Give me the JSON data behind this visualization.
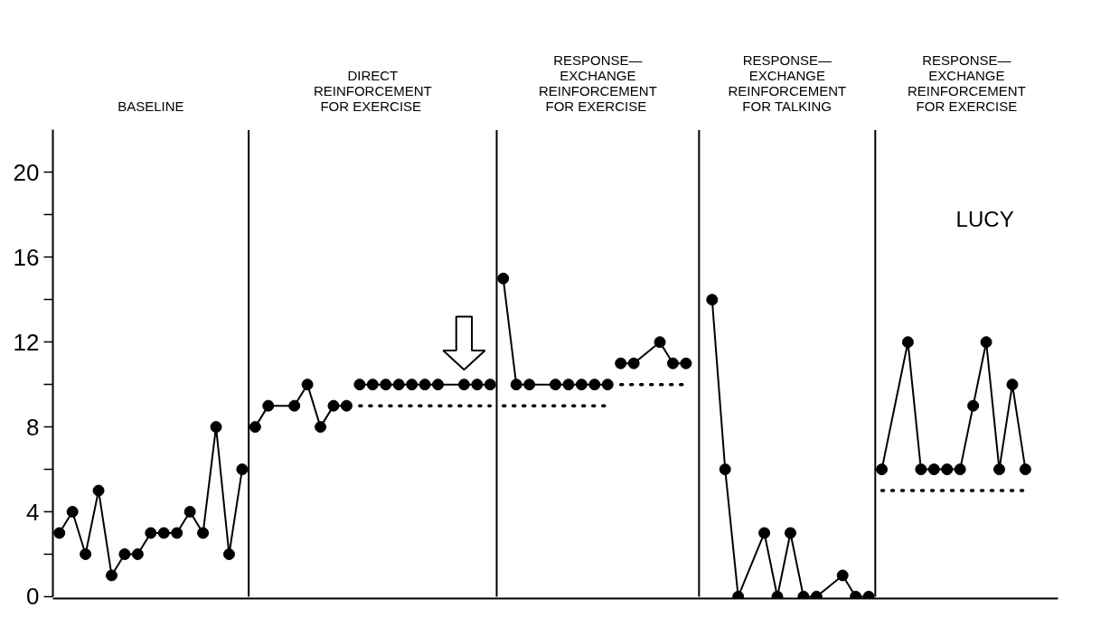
{
  "chart_data": {
    "type": "line",
    "annotations": [
      "BASELINE",
      "DIRECT\nREINFORCEMENT\nFOR  EXERCISE",
      "RESPONSE—\nEXCHANGE\nREINFORCEMENT\nFOR  EXERCISE",
      "RESPONSE—\nEXCHANGE\nREINFORCEMENT\nFOR TALKING",
      "RESPONSE—\nEXCHANGE\nREINFORCEMENT\nFOR EXERCISE",
      "LUCY"
    ],
    "categories": [
      null,
      null,
      null,
      null,
      null,
      null,
      null,
      null,
      null,
      null,
      null,
      null,
      null,
      null,
      null,
      null,
      null,
      null,
      null,
      null,
      null,
      null,
      null,
      null,
      null,
      null,
      null,
      null,
      null,
      null,
      null,
      null,
      null,
      null,
      null,
      null,
      null,
      null,
      null,
      null,
      null,
      null,
      null,
      null,
      null,
      null,
      null,
      null,
      null,
      null,
      null,
      null,
      null,
      null,
      null,
      null,
      null,
      null,
      null,
      null,
      null,
      null,
      null,
      null,
      null,
      null,
      null,
      null,
      null,
      null,
      null,
      null,
      null,
      null,
      null,
      null,
      null
    ],
    "ylim": [
      0,
      22
    ],
    "yticks": [
      0,
      {
        "value": 2,
        "label": null
      },
      4,
      {
        "value": 6,
        "label": null
      },
      8,
      {
        "value": 10,
        "label": null
      },
      12,
      {
        "value": 14,
        "label": null
      },
      16,
      {
        "value": 18,
        "label": null
      },
      20
    ],
    "tick_labels": "y",
    "marker": "circle",
    "line_style": "solid",
    "series": [
      {
        "color": "#000000",
        "values": [
          3,
          4,
          2,
          5,
          1,
          2,
          2,
          3,
          3,
          3,
          4,
          3,
          8,
          2,
          6,
          null,
          null,
          null,
          null,
          null,
          null,
          null,
          null,
          null,
          null,
          null,
          null,
          null,
          null,
          null,
          null,
          null,
          null,
          null,
          null,
          null,
          null,
          null,
          null,
          null,
          null,
          null,
          null,
          null,
          null,
          null,
          null,
          null,
          null,
          null,
          null,
          null,
          null,
          null,
          null,
          null,
          null,
          null,
          null,
          null,
          null,
          null,
          null,
          null,
          null,
          null,
          null,
          null,
          null,
          null,
          null,
          null,
          null,
          null,
          null,
          null,
          null
        ]
      },
      {
        "color": "#000000",
        "values": [
          null,
          null,
          null,
          null,
          null,
          null,
          null,
          null,
          null,
          null,
          null,
          null,
          null,
          null,
          null,
          8,
          9,
          null,
          9,
          10,
          8,
          9,
          9,
          null,
          null,
          null,
          null,
          null,
          null,
          null,
          null,
          null,
          null,
          null,
          null,
          null,
          null,
          null,
          null,
          null,
          null,
          null,
          null,
          null,
          null,
          null,
          null,
          null,
          null,
          null,
          null,
          null,
          null,
          null,
          null,
          null,
          null,
          null,
          null,
          null,
          null,
          null,
          null,
          null,
          null,
          null,
          null,
          null,
          null,
          null,
          null,
          null,
          null,
          null,
          null,
          null,
          null
        ]
      },
      {
        "color": "#000000",
        "values": [
          null,
          null,
          null,
          null,
          null,
          null,
          null,
          null,
          null,
          null,
          null,
          null,
          null,
          null,
          null,
          null,
          null,
          null,
          null,
          null,
          null,
          null,
          null,
          10,
          10,
          10,
          10,
          10,
          10,
          10,
          null,
          10,
          10,
          10,
          null,
          null,
          null,
          null,
          null,
          null,
          null,
          null,
          null,
          null,
          null,
          null,
          null,
          null,
          null,
          null,
          null,
          null,
          null,
          null,
          null,
          null,
          null,
          null,
          null,
          null,
          null,
          null,
          null,
          null,
          null,
          null,
          null,
          null,
          null,
          null,
          null,
          null,
          null,
          null,
          null,
          null,
          null
        ]
      },
      {
        "color": "#000000",
        "values": [
          null,
          null,
          null,
          null,
          null,
          null,
          null,
          null,
          null,
          null,
          null,
          null,
          null,
          null,
          null,
          null,
          null,
          null,
          null,
          null,
          null,
          null,
          null,
          null,
          null,
          null,
          null,
          null,
          null,
          null,
          null,
          null,
          null,
          null,
          15,
          10,
          10,
          null,
          10,
          10,
          10,
          10,
          10,
          null,
          null,
          null,
          null,
          null,
          null,
          null,
          null,
          null,
          null,
          null,
          null,
          null,
          null,
          null,
          null,
          null,
          null,
          null,
          null,
          null,
          null,
          null,
          null,
          null,
          null,
          null,
          null,
          null,
          null,
          null,
          null,
          null,
          null
        ]
      },
      {
        "color": "#000000",
        "values": [
          null,
          null,
          null,
          null,
          null,
          null,
          null,
          null,
          null,
          null,
          null,
          null,
          null,
          null,
          null,
          null,
          null,
          null,
          null,
          null,
          null,
          null,
          null,
          null,
          null,
          null,
          null,
          null,
          null,
          null,
          null,
          null,
          null,
          null,
          null,
          null,
          null,
          null,
          null,
          null,
          null,
          null,
          null,
          11,
          11,
          null,
          12,
          11,
          11,
          null,
          null,
          null,
          null,
          null,
          null,
          null,
          null,
          null,
          null,
          null,
          null,
          null,
          null,
          null,
          null,
          null,
          null,
          null,
          null,
          null,
          null,
          null,
          null,
          null,
          null,
          null,
          null
        ]
      },
      {
        "color": "#000000",
        "values": [
          null,
          null,
          null,
          null,
          null,
          null,
          null,
          null,
          null,
          null,
          null,
          null,
          null,
          null,
          null,
          null,
          null,
          null,
          null,
          null,
          null,
          null,
          null,
          null,
          null,
          null,
          null,
          null,
          null,
          null,
          null,
          null,
          null,
          null,
          null,
          null,
          null,
          null,
          null,
          null,
          null,
          null,
          null,
          null,
          null,
          null,
          null,
          null,
          null,
          null,
          14,
          6,
          0,
          null,
          3,
          0,
          3,
          0,
          0,
          null,
          1,
          0,
          0,
          null,
          null,
          null,
          null,
          null,
          null,
          null,
          null,
          null,
          null,
          null,
          null,
          null,
          null
        ]
      },
      {
        "color": "#000000",
        "values": [
          null,
          null,
          null,
          null,
          null,
          null,
          null,
          null,
          null,
          null,
          null,
          null,
          null,
          null,
          null,
          null,
          null,
          null,
          null,
          null,
          null,
          null,
          null,
          null,
          null,
          null,
          null,
          null,
          null,
          null,
          null,
          null,
          null,
          null,
          null,
          null,
          null,
          null,
          null,
          null,
          null,
          null,
          null,
          null,
          null,
          null,
          null,
          null,
          null,
          null,
          null,
          null,
          null,
          null,
          null,
          null,
          null,
          null,
          null,
          null,
          null,
          null,
          null,
          6,
          null,
          12,
          6,
          6,
          6,
          6,
          9,
          12,
          6,
          10,
          6,
          null,
          null
        ]
      },
      {
        "color": "#000000",
        "marker": "none",
        "line_style": "dotted",
        "values": [
          null,
          null,
          null,
          null,
          null,
          null,
          null,
          null,
          null,
          null,
          null,
          null,
          null,
          null,
          null,
          null,
          null,
          null,
          null,
          null,
          null,
          null,
          null,
          9,
          9,
          9,
          9,
          9,
          9,
          9,
          9,
          9,
          9,
          9,
          null,
          null,
          null,
          null,
          null,
          null,
          null,
          null,
          null,
          null,
          null,
          null,
          null,
          null,
          null,
          null,
          null,
          null,
          null,
          null,
          null,
          null,
          null,
          null,
          null,
          null,
          null,
          null,
          null,
          null,
          null,
          null,
          null,
          null,
          null,
          null,
          null,
          null,
          null,
          null,
          null,
          null,
          null
        ]
      },
      {
        "color": "#000000",
        "marker": "none",
        "line_style": "dotted",
        "values": [
          null,
          null,
          null,
          null,
          null,
          null,
          null,
          null,
          null,
          null,
          null,
          null,
          null,
          null,
          null,
          null,
          null,
          null,
          null,
          null,
          null,
          null,
          null,
          null,
          null,
          null,
          null,
          null,
          null,
          null,
          null,
          null,
          null,
          null,
          9,
          9,
          9,
          9,
          9,
          9,
          9,
          9,
          9,
          null,
          null,
          null,
          null,
          null,
          null,
          null,
          null,
          null,
          null,
          null,
          null,
          null,
          null,
          null,
          null,
          null,
          null,
          null,
          null,
          null,
          null,
          null,
          null,
          null,
          null,
          null,
          null,
          null,
          null,
          null,
          null,
          null,
          null
        ]
      },
      {
        "color": "#000000",
        "marker": "none",
        "line_style": "dotted",
        "values": [
          null,
          null,
          null,
          null,
          null,
          null,
          null,
          null,
          null,
          null,
          null,
          null,
          null,
          null,
          null,
          null,
          null,
          null,
          null,
          null,
          null,
          null,
          null,
          null,
          null,
          null,
          null,
          null,
          null,
          null,
          null,
          null,
          null,
          null,
          null,
          null,
          null,
          null,
          null,
          null,
          null,
          null,
          null,
          10,
          10,
          10,
          10,
          10,
          10,
          null,
          null,
          null,
          null,
          null,
          null,
          null,
          null,
          null,
          null,
          null,
          null,
          null,
          null,
          null,
          null,
          null,
          null,
          null,
          null,
          null,
          null,
          null,
          null,
          null,
          null,
          null,
          null
        ]
      },
      {
        "color": "#000000",
        "marker": "none",
        "line_style": "dotted",
        "values": [
          null,
          null,
          null,
          null,
          null,
          null,
          null,
          null,
          null,
          null,
          null,
          null,
          null,
          null,
          null,
          null,
          null,
          null,
          null,
          null,
          null,
          null,
          null,
          null,
          null,
          null,
          null,
          null,
          null,
          null,
          null,
          null,
          null,
          null,
          null,
          null,
          null,
          null,
          null,
          null,
          null,
          null,
          null,
          null,
          null,
          null,
          null,
          null,
          null,
          null,
          null,
          null,
          null,
          null,
          null,
          null,
          null,
          null,
          null,
          null,
          null,
          null,
          null,
          5,
          5,
          5,
          5,
          5,
          5,
          5,
          5,
          5,
          5,
          5,
          5,
          null,
          null
        ]
      }
    ]
  }
}
